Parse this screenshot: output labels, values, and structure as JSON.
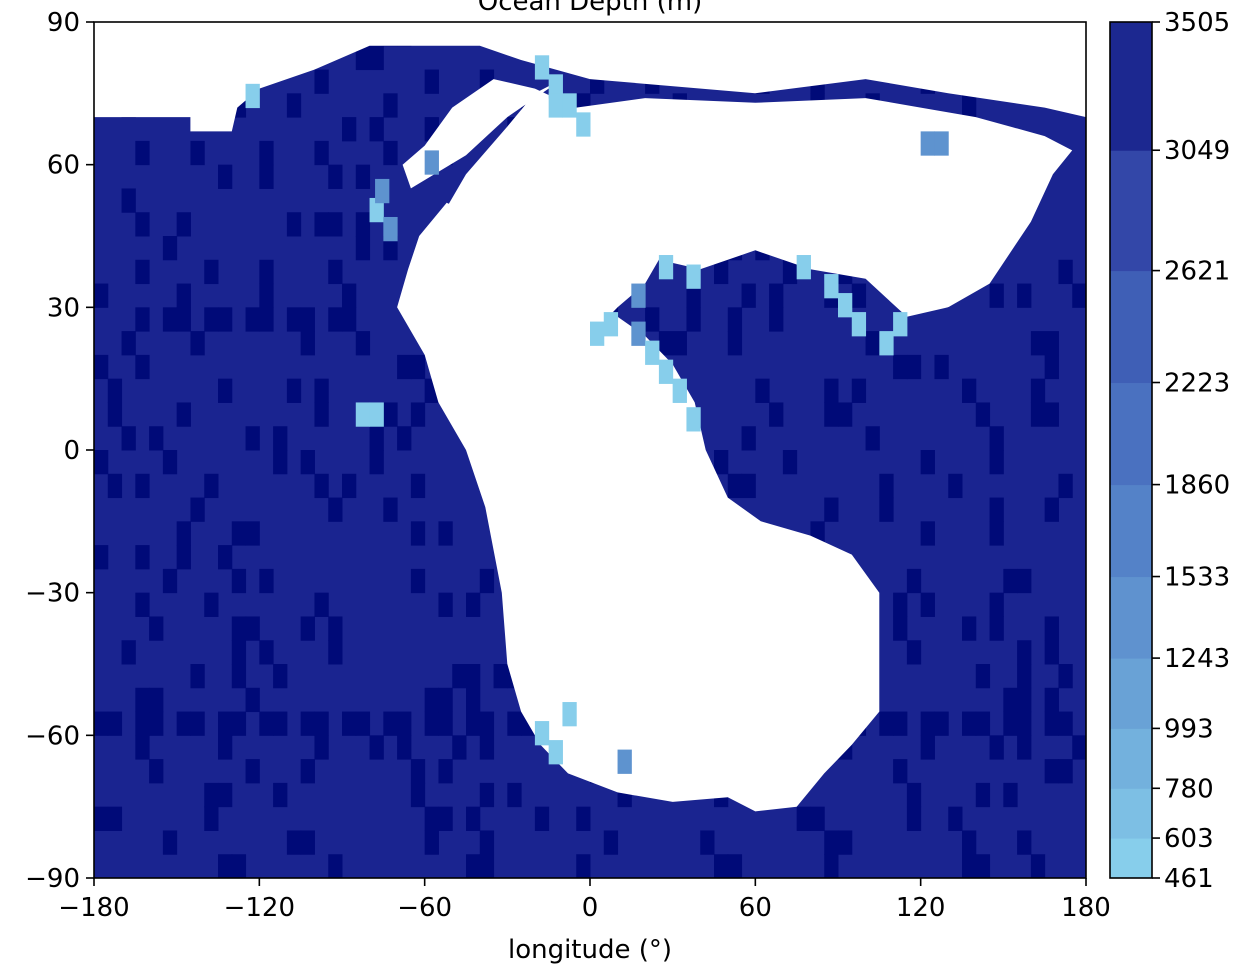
{
  "chart_data": {
    "type": "heatmap",
    "title": "Ocean Depth (m)",
    "xlabel": "longitude (°)",
    "ylabel": "",
    "xlim": [
      -180,
      180
    ],
    "ylim": [
      -90,
      90
    ],
    "x_ticks": [
      "−180",
      "−120",
      "−60",
      "0",
      "60",
      "120",
      "180"
    ],
    "x_tick_values": [
      -180,
      -120,
      -60,
      0,
      60,
      120,
      180
    ],
    "y_ticks": [
      "−90",
      "−60",
      "−30",
      "0",
      "30",
      "60",
      "90"
    ],
    "y_tick_values": [
      -90,
      -60,
      -30,
      0,
      30,
      60,
      90
    ],
    "colorbar": {
      "levels": [
        461,
        603,
        780,
        993,
        1243,
        1533,
        1860,
        2223,
        2621,
        3049,
        3505
      ],
      "labels": [
        "461",
        "603",
        "780",
        "993",
        "1243",
        "1533",
        "1860",
        "2223",
        "2621",
        "3049",
        "3505"
      ],
      "colors": [
        "#87ceeb",
        "#7dbfe4",
        "#73b1dd",
        "#69a2d6",
        "#5f92cf",
        "#5482c8",
        "#4a71c0",
        "#3f5fb6",
        "#3347a8",
        "#1c2890",
        "#000a78"
      ]
    },
    "colors": {
      "ocean_deep": "#1a2490",
      "ocean_deepest": "#000a78",
      "shallow": "#87ceeb",
      "mid_shallow": "#5e93cf",
      "land": "#ffffff"
    },
    "cell_size_deg": 5,
    "grid": false,
    "dominant_depth_range": [
      3049,
      3505
    ],
    "notes_land": "white",
    "land_regions": [
      {
        "name": "arctic_cap",
        "points": [
          [
            -180,
            70
          ],
          [
            -145,
            70
          ],
          [
            -145,
            67
          ],
          [
            -130,
            67
          ],
          [
            -128,
            72
          ],
          [
            -120,
            76
          ],
          [
            -100,
            80
          ],
          [
            -80,
            85
          ],
          [
            -40,
            85
          ],
          [
            -25,
            82
          ],
          [
            0,
            78
          ],
          [
            60,
            75
          ],
          [
            100,
            78
          ],
          [
            130,
            75
          ],
          [
            165,
            72
          ],
          [
            180,
            70
          ],
          [
            180,
            90
          ],
          [
            -180,
            90
          ]
        ]
      },
      {
        "name": "main_continent",
        "points": [
          [
            -65,
            55
          ],
          [
            -45,
            62
          ],
          [
            -30,
            70
          ],
          [
            -10,
            78
          ],
          [
            -20,
            75
          ],
          [
            -30,
            68
          ],
          [
            -45,
            58
          ],
          [
            -55,
            48
          ],
          [
            -45,
            40
          ],
          [
            -30,
            30
          ],
          [
            -20,
            22
          ],
          [
            -10,
            20
          ],
          [
            0,
            24
          ],
          [
            10,
            30
          ],
          [
            20,
            35
          ],
          [
            25,
            40
          ],
          [
            40,
            38
          ],
          [
            60,
            42
          ],
          [
            80,
            38
          ],
          [
            100,
            36
          ],
          [
            115,
            28
          ],
          [
            130,
            30
          ],
          [
            145,
            35
          ],
          [
            160,
            48
          ],
          [
            168,
            58
          ],
          [
            175,
            63
          ],
          [
            165,
            66
          ],
          [
            140,
            70
          ],
          [
            120,
            72
          ],
          [
            100,
            74
          ],
          [
            60,
            73
          ],
          [
            20,
            74
          ],
          [
            -5,
            72
          ],
          [
            -20,
            76
          ],
          [
            -35,
            78
          ],
          [
            -50,
            72
          ],
          [
            -60,
            64
          ],
          [
            -68,
            60
          ]
        ]
      },
      {
        "name": "southern_lobe",
        "points": [
          [
            -52,
            52
          ],
          [
            -62,
            45
          ],
          [
            -66,
            38
          ],
          [
            -70,
            30
          ],
          [
            -60,
            20
          ],
          [
            -55,
            10
          ],
          [
            -45,
            0
          ],
          [
            -38,
            -12
          ],
          [
            -32,
            -30
          ],
          [
            -30,
            -45
          ],
          [
            -25,
            -55
          ],
          [
            -18,
            -62
          ],
          [
            -8,
            -68
          ],
          [
            10,
            -72
          ],
          [
            30,
            -74
          ],
          [
            50,
            -73
          ],
          [
            60,
            -76
          ],
          [
            75,
            -75
          ],
          [
            85,
            -68
          ],
          [
            95,
            -62
          ],
          [
            105,
            -55
          ],
          [
            105,
            -30
          ],
          [
            95,
            -22
          ],
          [
            80,
            -18
          ],
          [
            62,
            -15
          ],
          [
            50,
            -10
          ],
          [
            42,
            0
          ],
          [
            38,
            10
          ],
          [
            30,
            18
          ],
          [
            20,
            24
          ],
          [
            10,
            28
          ],
          [
            0,
            30
          ],
          [
            -10,
            35
          ],
          [
            -25,
            42
          ],
          [
            -38,
            48
          ]
        ]
      }
    ]
  }
}
